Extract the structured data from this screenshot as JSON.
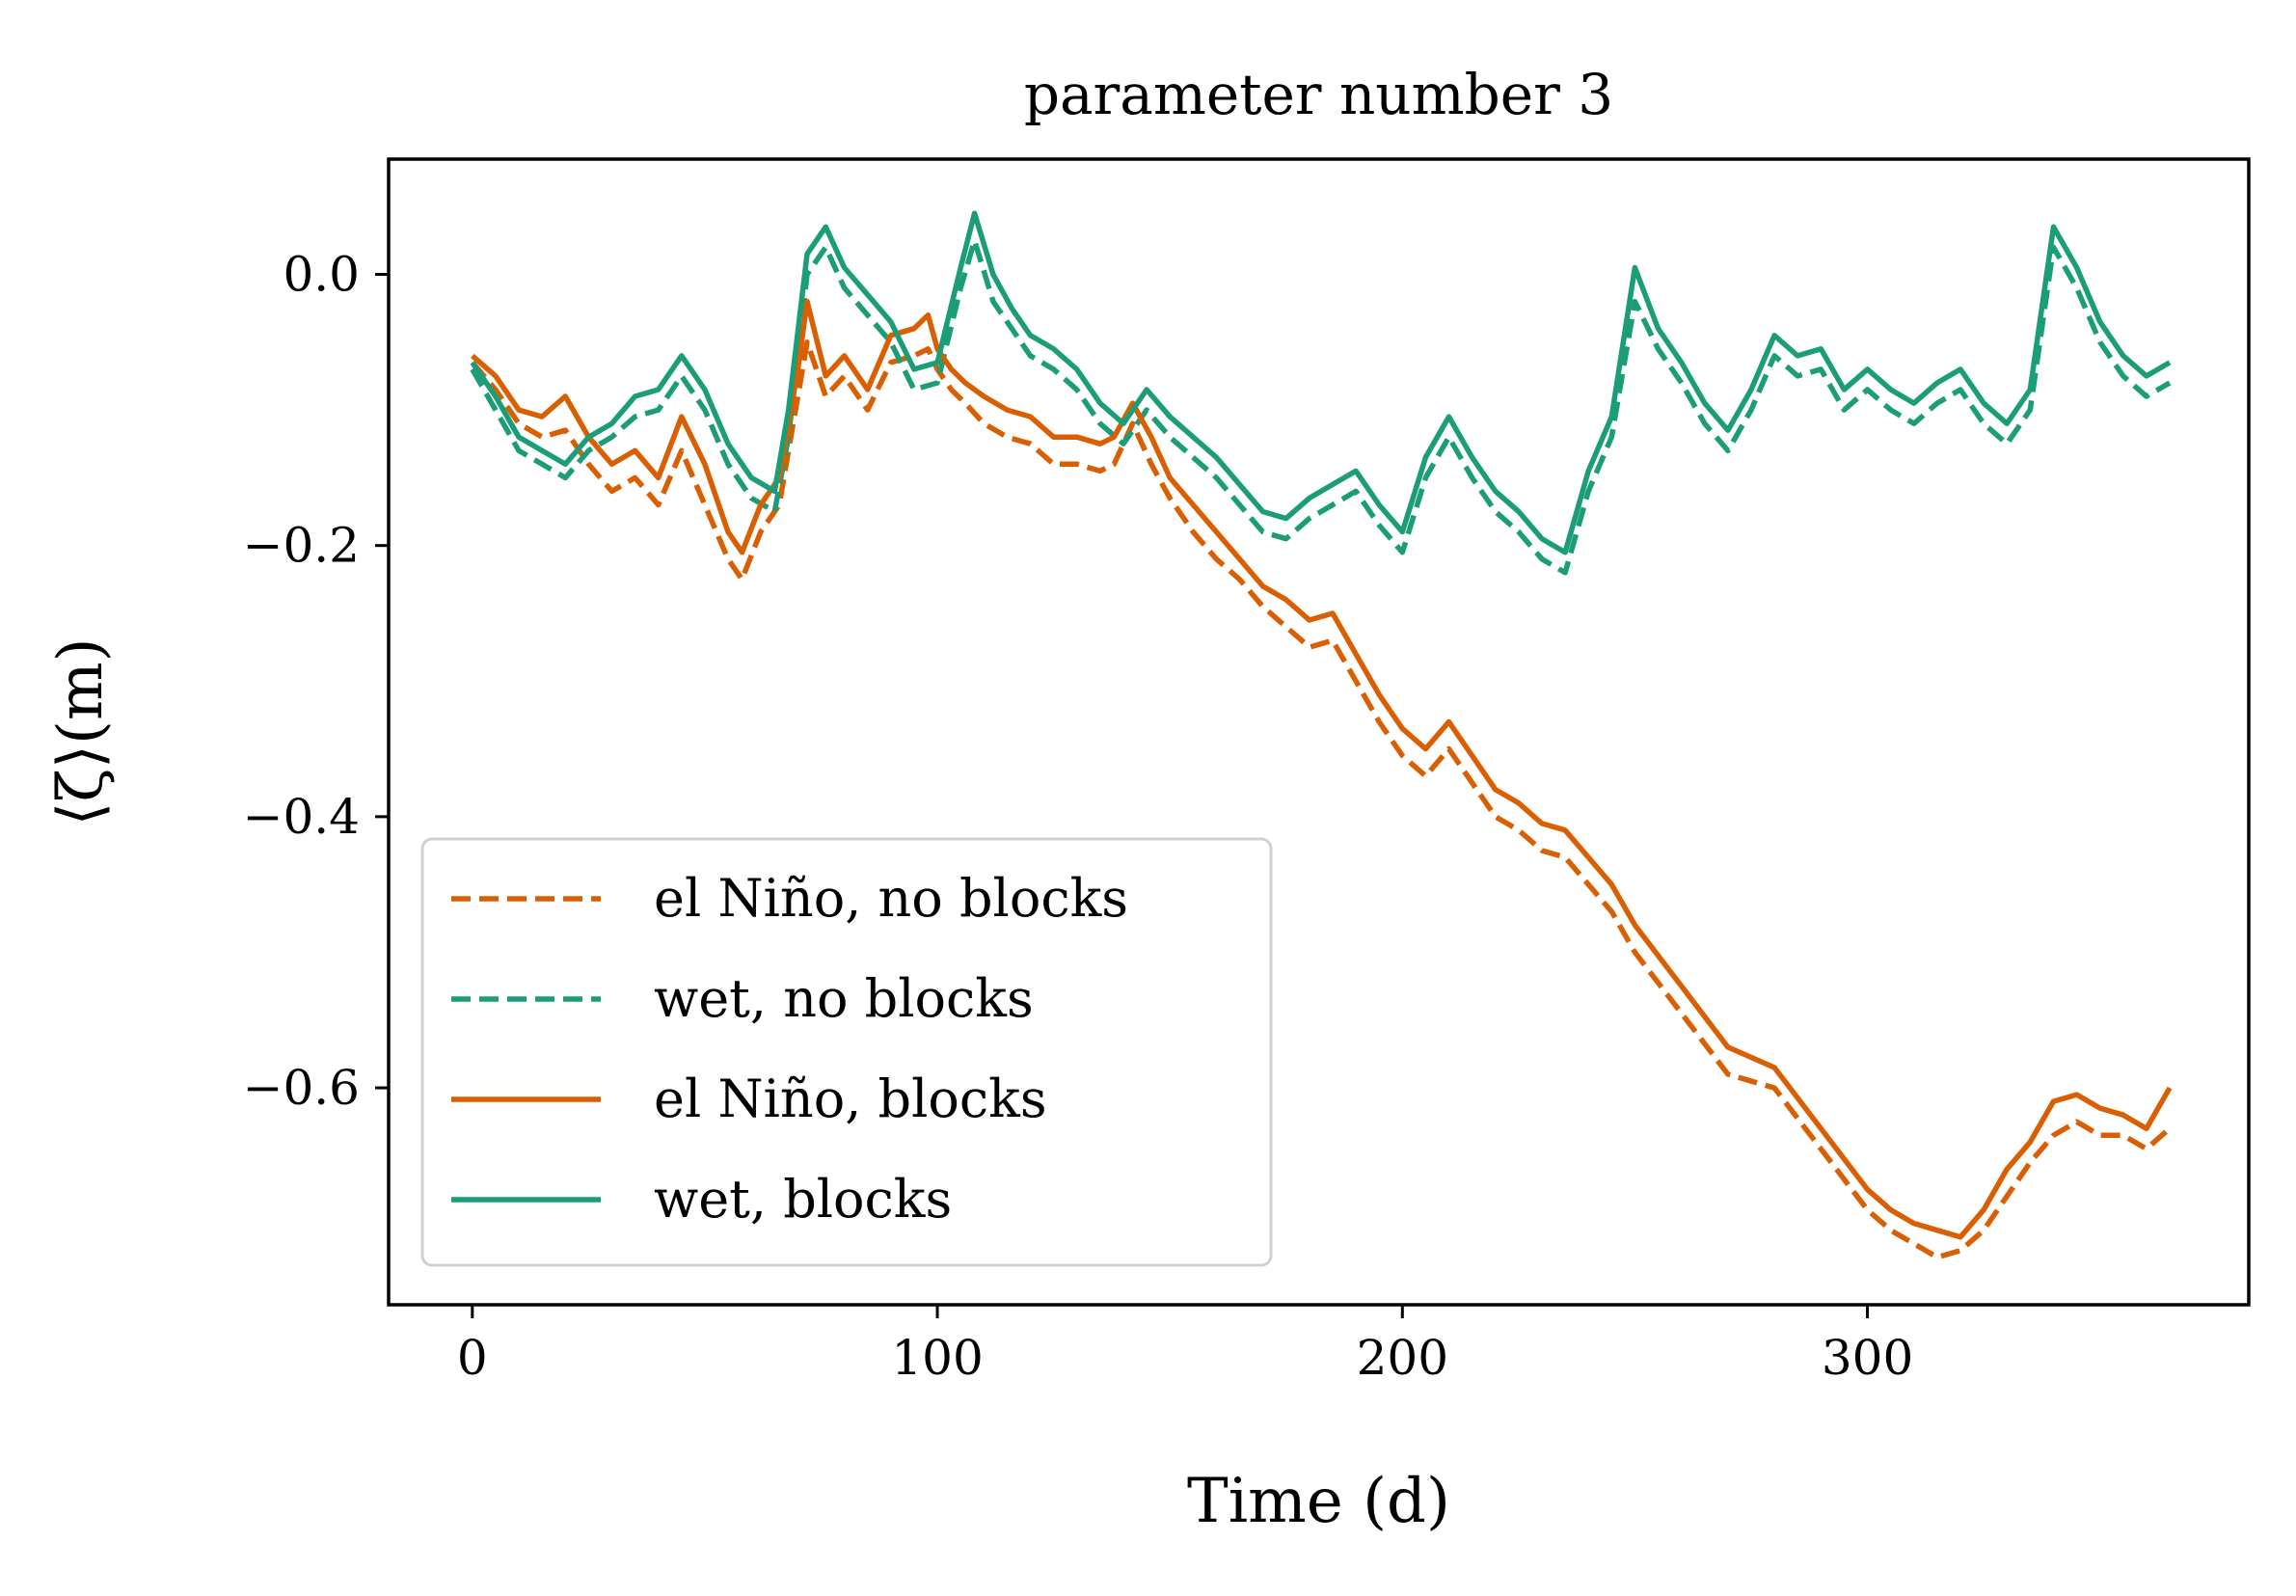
{
  "chart_data": {
    "type": "line",
    "title": "parameter number 3",
    "xlabel": "Time (d)",
    "ylabel": "⟨ζ⟩(m)",
    "xlim": [
      -18,
      382
    ],
    "ylim": [
      -0.76,
      0.085
    ],
    "xticks": [
      0,
      100,
      200,
      300
    ],
    "xtick_labels": [
      "0",
      "100",
      "200",
      "300"
    ],
    "yticks": [
      0.0,
      -0.2,
      -0.4,
      -0.6
    ],
    "ytick_labels": [
      "0.0",
      "−0.2",
      "−0.4",
      "−0.6"
    ],
    "grid": false,
    "legend_position": "lower-left",
    "colors": {
      "orange": "#d95f02",
      "green": "#1b9e77"
    },
    "series": [
      {
        "name": "el Niño, no blocks",
        "color": "#d95f02",
        "linestyle": "dashed",
        "x": [
          0,
          5,
          10,
          15,
          20,
          25,
          30,
          35,
          40,
          45,
          50,
          55,
          58,
          62,
          66,
          70,
          72,
          76,
          80,
          85,
          90,
          95,
          98,
          100,
          103,
          106,
          110,
          115,
          120,
          125,
          130,
          135,
          138,
          142,
          146,
          150,
          155,
          160,
          165,
          170,
          175,
          180,
          185,
          190,
          195,
          200,
          205,
          210,
          215,
          220,
          225,
          230,
          235,
          240,
          245,
          250,
          260,
          270,
          280,
          290,
          300,
          305,
          310,
          315,
          320,
          325,
          330,
          335,
          340,
          345,
          350,
          355,
          360,
          365
        ],
        "y": [
          -0.065,
          -0.085,
          -0.11,
          -0.12,
          -0.115,
          -0.14,
          -0.16,
          -0.15,
          -0.17,
          -0.13,
          -0.17,
          -0.21,
          -0.225,
          -0.19,
          -0.17,
          -0.09,
          -0.05,
          -0.09,
          -0.075,
          -0.1,
          -0.065,
          -0.06,
          -0.055,
          -0.07,
          -0.085,
          -0.095,
          -0.11,
          -0.12,
          -0.125,
          -0.14,
          -0.14,
          -0.145,
          -0.14,
          -0.11,
          -0.14,
          -0.165,
          -0.19,
          -0.21,
          -0.225,
          -0.245,
          -0.26,
          -0.275,
          -0.27,
          -0.3,
          -0.33,
          -0.355,
          -0.37,
          -0.35,
          -0.375,
          -0.4,
          -0.41,
          -0.425,
          -0.43,
          -0.45,
          -0.47,
          -0.5,
          -0.545,
          -0.59,
          -0.6,
          -0.645,
          -0.69,
          -0.705,
          -0.715,
          -0.725,
          -0.72,
          -0.705,
          -0.68,
          -0.655,
          -0.635,
          -0.625,
          -0.635,
          -0.635,
          -0.645,
          -0.63
        ]
      },
      {
        "name": "wet, no blocks",
        "color": "#1b9e77",
        "linestyle": "dashed",
        "x": [
          0,
          5,
          10,
          15,
          20,
          25,
          30,
          35,
          40,
          45,
          50,
          55,
          60,
          65,
          68,
          72,
          76,
          80,
          85,
          90,
          95,
          100,
          105,
          108,
          112,
          116,
          120,
          125,
          130,
          135,
          140,
          145,
          150,
          155,
          160,
          165,
          170,
          175,
          180,
          185,
          190,
          195,
          200,
          205,
          210,
          215,
          220,
          225,
          230,
          235,
          240,
          245,
          250,
          255,
          260,
          265,
          270,
          275,
          280,
          285,
          290,
          295,
          300,
          305,
          310,
          315,
          320,
          325,
          330,
          335,
          340,
          345,
          350,
          355,
          360,
          365
        ],
        "y": [
          -0.07,
          -0.1,
          -0.13,
          -0.14,
          -0.15,
          -0.13,
          -0.12,
          -0.105,
          -0.1,
          -0.075,
          -0.1,
          -0.14,
          -0.165,
          -0.175,
          -0.12,
          0.0,
          0.02,
          -0.01,
          -0.03,
          -0.05,
          -0.085,
          -0.08,
          -0.01,
          0.025,
          -0.02,
          -0.04,
          -0.06,
          -0.07,
          -0.085,
          -0.11,
          -0.125,
          -0.1,
          -0.12,
          -0.135,
          -0.15,
          -0.17,
          -0.19,
          -0.195,
          -0.18,
          -0.17,
          -0.16,
          -0.185,
          -0.205,
          -0.15,
          -0.12,
          -0.15,
          -0.175,
          -0.19,
          -0.21,
          -0.22,
          -0.16,
          -0.12,
          -0.02,
          -0.055,
          -0.08,
          -0.11,
          -0.13,
          -0.1,
          -0.06,
          -0.075,
          -0.07,
          -0.1,
          -0.085,
          -0.1,
          -0.11,
          -0.095,
          -0.085,
          -0.11,
          -0.125,
          -0.1,
          0.02,
          -0.01,
          -0.05,
          -0.075,
          -0.09,
          -0.08
        ]
      },
      {
        "name": "el Niño, blocks",
        "color": "#d95f02",
        "linestyle": "solid",
        "x": [
          0,
          5,
          10,
          15,
          20,
          25,
          30,
          35,
          40,
          45,
          50,
          55,
          58,
          62,
          66,
          70,
          72,
          76,
          80,
          85,
          90,
          95,
          98,
          100,
          103,
          106,
          110,
          115,
          120,
          125,
          130,
          135,
          138,
          142,
          146,
          150,
          155,
          160,
          165,
          170,
          175,
          180,
          185,
          190,
          195,
          200,
          205,
          210,
          215,
          220,
          225,
          230,
          235,
          240,
          245,
          250,
          260,
          270,
          280,
          290,
          300,
          305,
          310,
          315,
          320,
          325,
          330,
          335,
          340,
          345,
          350,
          355,
          360,
          365
        ],
        "y": [
          -0.06,
          -0.075,
          -0.1,
          -0.105,
          -0.09,
          -0.12,
          -0.14,
          -0.13,
          -0.15,
          -0.105,
          -0.14,
          -0.19,
          -0.205,
          -0.17,
          -0.15,
          -0.07,
          -0.02,
          -0.075,
          -0.06,
          -0.085,
          -0.045,
          -0.04,
          -0.03,
          -0.055,
          -0.07,
          -0.08,
          -0.09,
          -0.1,
          -0.105,
          -0.12,
          -0.12,
          -0.125,
          -0.12,
          -0.095,
          -0.12,
          -0.15,
          -0.17,
          -0.19,
          -0.21,
          -0.23,
          -0.24,
          -0.255,
          -0.25,
          -0.28,
          -0.31,
          -0.335,
          -0.35,
          -0.33,
          -0.355,
          -0.38,
          -0.39,
          -0.405,
          -0.41,
          -0.43,
          -0.45,
          -0.48,
          -0.525,
          -0.57,
          -0.585,
          -0.63,
          -0.675,
          -0.69,
          -0.7,
          -0.705,
          -0.71,
          -0.69,
          -0.66,
          -0.64,
          -0.61,
          -0.605,
          -0.615,
          -0.62,
          -0.63,
          -0.6
        ]
      },
      {
        "name": "wet, blocks",
        "color": "#1b9e77",
        "linestyle": "solid",
        "x": [
          0,
          5,
          10,
          15,
          20,
          25,
          30,
          35,
          40,
          45,
          50,
          55,
          60,
          65,
          68,
          72,
          76,
          80,
          85,
          90,
          95,
          100,
          105,
          108,
          112,
          116,
          120,
          125,
          130,
          135,
          140,
          145,
          150,
          155,
          160,
          165,
          170,
          175,
          180,
          185,
          190,
          195,
          200,
          205,
          210,
          215,
          220,
          225,
          230,
          235,
          240,
          245,
          250,
          255,
          260,
          265,
          270,
          275,
          280,
          285,
          290,
          295,
          300,
          305,
          310,
          315,
          320,
          325,
          330,
          335,
          340,
          345,
          350,
          355,
          360,
          365
        ],
        "y": [
          -0.065,
          -0.09,
          -0.12,
          -0.13,
          -0.14,
          -0.12,
          -0.11,
          -0.09,
          -0.085,
          -0.06,
          -0.085,
          -0.125,
          -0.15,
          -0.16,
          -0.1,
          0.015,
          0.035,
          0.005,
          -0.015,
          -0.035,
          -0.07,
          -0.065,
          0.005,
          0.045,
          0.0,
          -0.025,
          -0.045,
          -0.055,
          -0.07,
          -0.095,
          -0.11,
          -0.085,
          -0.105,
          -0.12,
          -0.135,
          -0.155,
          -0.175,
          -0.18,
          -0.165,
          -0.155,
          -0.145,
          -0.17,
          -0.19,
          -0.135,
          -0.105,
          -0.135,
          -0.16,
          -0.175,
          -0.195,
          -0.205,
          -0.145,
          -0.105,
          0.005,
          -0.04,
          -0.065,
          -0.095,
          -0.115,
          -0.085,
          -0.045,
          -0.06,
          -0.055,
          -0.085,
          -0.07,
          -0.085,
          -0.095,
          -0.08,
          -0.07,
          -0.095,
          -0.11,
          -0.085,
          0.035,
          0.005,
          -0.035,
          -0.06,
          -0.075,
          -0.065
        ]
      }
    ]
  }
}
